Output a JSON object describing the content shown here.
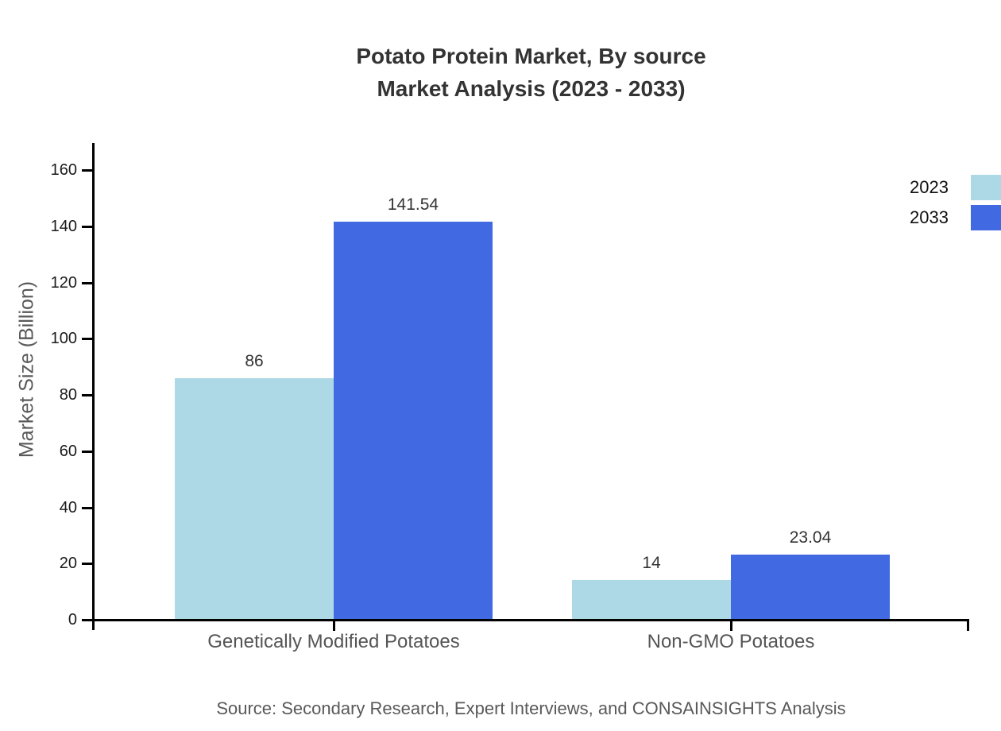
{
  "title": {
    "line1": "Potato Protein Market, By source",
    "line2": "Market Analysis (2023 - 2033)"
  },
  "source_note": "Source: Secondary Research, Expert Interviews, and CONSAINSIGHTS Analysis",
  "chart_data": {
    "type": "bar",
    "categories": [
      "Genetically Modified Potatoes",
      "Non-GMO Potatoes"
    ],
    "series": [
      {
        "name": "2023",
        "color": "#ADD8E6",
        "values": [
          86,
          14
        ]
      },
      {
        "name": "2033",
        "color": "#4169E1",
        "values": [
          141.54,
          23.04
        ]
      }
    ],
    "value_labels": {
      "Genetically Modified Potatoes": {
        "2023": "86",
        "2033": "141.54"
      },
      "Non-GMO Potatoes": {
        "2023": "14",
        "2033": "23.04"
      }
    },
    "title": "Potato Protein Market, By source Market Analysis (2023 - 2033)",
    "xlabel": "",
    "ylabel": "Market Size (Billion)",
    "ylim": [
      0,
      160
    ],
    "ytick_step": 20,
    "ytick_labels": [
      "0",
      "20",
      "40",
      "60",
      "80",
      "100",
      "120",
      "140",
      "160"
    ],
    "grid": false,
    "legend_position": "right",
    "axis_color": "#000000",
    "text_color": "#333333"
  }
}
